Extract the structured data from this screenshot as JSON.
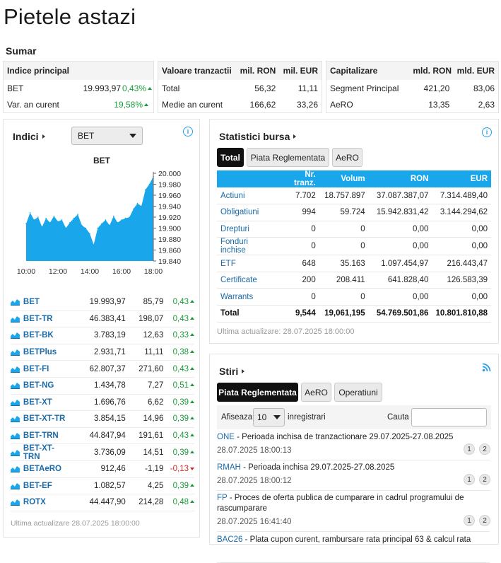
{
  "page": {
    "title": "Pietele astazi"
  },
  "sumar": {
    "title": "Sumar",
    "indice": {
      "header": "Indice principal",
      "rows": [
        {
          "label": "BET",
          "value": "19.993,97",
          "change": "0,43%"
        },
        {
          "label": "Var. an curent",
          "value": "",
          "change": "19,58%"
        }
      ]
    },
    "valoare": {
      "header": "Valoare tranzactii",
      "col1": "mil. RON",
      "col2": "mil. EUR",
      "rows": [
        {
          "label": "Total",
          "ron": "56,32",
          "eur": "11,11"
        },
        {
          "label": "Medie an curent",
          "ron": "166,62",
          "eur": "33,26"
        }
      ]
    },
    "capitalizare": {
      "header": "Capitalizare",
      "col1": "mld. RON",
      "col2": "mld. EUR",
      "rows": [
        {
          "label": "Segment Principal",
          "ron": "421,20",
          "eur": "83,06"
        },
        {
          "label": "AeRO",
          "ron": "13,35",
          "eur": "2,63"
        }
      ]
    }
  },
  "indici": {
    "title": "Indici",
    "selected": "BET",
    "updated": "Ultima actualizare 28.07.2025 18:00:00",
    "rows": [
      {
        "name": "BET",
        "value": "19.993,97",
        "change": "85,79",
        "pct": "0,43",
        "dir": "up"
      },
      {
        "name": "BET-TR",
        "value": "46.383,41",
        "change": "198,07",
        "pct": "0,43",
        "dir": "up"
      },
      {
        "name": "BET-BK",
        "value": "3.783,19",
        "change": "12,63",
        "pct": "0,33",
        "dir": "up"
      },
      {
        "name": "BETPlus",
        "value": "2.931,71",
        "change": "11,11",
        "pct": "0,38",
        "dir": "up"
      },
      {
        "name": "BET-FI",
        "value": "62.807,37",
        "change": "271,60",
        "pct": "0,43",
        "dir": "up"
      },
      {
        "name": "BET-NG",
        "value": "1.434,78",
        "change": "7,27",
        "pct": "0,51",
        "dir": "up"
      },
      {
        "name": "BET-XT",
        "value": "1.696,76",
        "change": "6,62",
        "pct": "0,39",
        "dir": "up"
      },
      {
        "name": "BET-XT-TR",
        "value": "3.854,15",
        "change": "14,96",
        "pct": "0,39",
        "dir": "up"
      },
      {
        "name": "BET-TRN",
        "value": "44.847,94",
        "change": "191,61",
        "pct": "0,43",
        "dir": "up"
      },
      {
        "name": "BET-XT-TRN",
        "value": "3.736,09",
        "change": "14,51",
        "pct": "0,39",
        "dir": "up"
      },
      {
        "name": "BETAeRO",
        "value": "912,46",
        "change": "-1,19",
        "pct": "-0,13",
        "dir": "down"
      },
      {
        "name": "BET-EF",
        "value": "1.082,57",
        "change": "4,25",
        "pct": "0,39",
        "dir": "up"
      },
      {
        "name": "ROTX",
        "value": "44.447,90",
        "change": "214,28",
        "pct": "0,48",
        "dir": "up"
      }
    ]
  },
  "chart_data": {
    "type": "area",
    "title": "BET",
    "xlabel": "",
    "ylabel": "",
    "xticks": [
      "10:00",
      "12:00",
      "14:00",
      "16:00",
      "18:00"
    ],
    "yticks": [
      "20.000",
      "19.980",
      "19.960",
      "19.940",
      "19.920",
      "19.900",
      "19.880",
      "19.860",
      "19.840"
    ],
    "xlim": [
      "10:00",
      "18:00"
    ],
    "ylim": [
      19840,
      20000
    ],
    "x": [
      "10:00",
      "10:15",
      "10:30",
      "10:45",
      "11:00",
      "11:15",
      "11:30",
      "11:45",
      "12:00",
      "12:15",
      "12:30",
      "12:45",
      "13:00",
      "13:15",
      "13:30",
      "13:45",
      "14:00",
      "14:15",
      "14:30",
      "14:45",
      "15:00",
      "15:15",
      "15:30",
      "15:45",
      "16:00",
      "16:15",
      "16:30",
      "16:45",
      "17:00",
      "17:15",
      "17:30",
      "17:45",
      "18:00"
    ],
    "values": [
      19908,
      19928,
      19915,
      19920,
      19902,
      19918,
      19910,
      19922,
      19912,
      19915,
      19900,
      19910,
      19918,
      19925,
      19905,
      19900,
      19890,
      19870,
      19900,
      19908,
      19915,
      19905,
      19922,
      19910,
      19915,
      19918,
      19920,
      19935,
      19945,
      19940,
      19970,
      19980,
      19994
    ],
    "color": "#19a6ea",
    "grid": false
  },
  "statistici": {
    "title": "Statistici bursa",
    "tabs": [
      "Total",
      "Piata Reglementata",
      "AeRO"
    ],
    "columns": [
      "",
      "Nr. tranz.",
      "Volum",
      "RON",
      "EUR"
    ],
    "rows": [
      {
        "label": "Actiuni",
        "tr": "7.702",
        "vol": "18.757.897",
        "ron": "37.087.387,07",
        "eur": "7.314.489,40"
      },
      {
        "label": "Obligatiuni",
        "tr": "994",
        "vol": "59.724",
        "ron": "15.942.831,42",
        "eur": "3.144.294,62"
      },
      {
        "label": "Drepturi",
        "tr": "0",
        "vol": "0",
        "ron": "0,00",
        "eur": "0,00"
      },
      {
        "label": "Fonduri inchise",
        "tr": "0",
        "vol": "0",
        "ron": "0,00",
        "eur": "0,00"
      },
      {
        "label": "ETF",
        "tr": "648",
        "vol": "35.163",
        "ron": "1.097.454,97",
        "eur": "216.443,47"
      },
      {
        "label": "Certificate",
        "tr": "200",
        "vol": "208.411",
        "ron": "641.828,40",
        "eur": "126.583,39"
      },
      {
        "label": "Warrants",
        "tr": "0",
        "vol": "0",
        "ron": "0,00",
        "eur": "0,00"
      },
      {
        "label": "Total",
        "tr": "9,544",
        "vol": "19,061,195",
        "ron": "54.769.501,86",
        "eur": "10.801.810,88"
      }
    ],
    "updated": "Ultima actualizare: 28.07.2025 18:00:00"
  },
  "stiri": {
    "title": "Stiri",
    "tabs": [
      "Piata Reglementata",
      "AeRO",
      "Operatiuni"
    ],
    "show_label": "Afiseaza",
    "show_value": "10",
    "records_label": "inregistrari",
    "search_label": "Cauta",
    "search_value": "",
    "items": [
      {
        "code": "ONE",
        "text": "Perioada inchisa de tranzactionare 29.07.2025-27.08.2025",
        "date": "28.07.2025 18:00:13"
      },
      {
        "code": "RMAH",
        "text": "Perioada inchisa 29.07.2025-27.08.2025",
        "date": "28.07.2025 18:00:12"
      },
      {
        "code": "FP",
        "text": "Proces de oferta publica de cumparare in cadrul programului de rascumparare",
        "date": "28.07.2025 16:41:40"
      },
      {
        "code": "BAC26",
        "text": "Plata cupon curent, rambursare rata principal 63 & calcul rata",
        "date": ""
      }
    ],
    "pills": [
      "1",
      "2"
    ]
  }
}
